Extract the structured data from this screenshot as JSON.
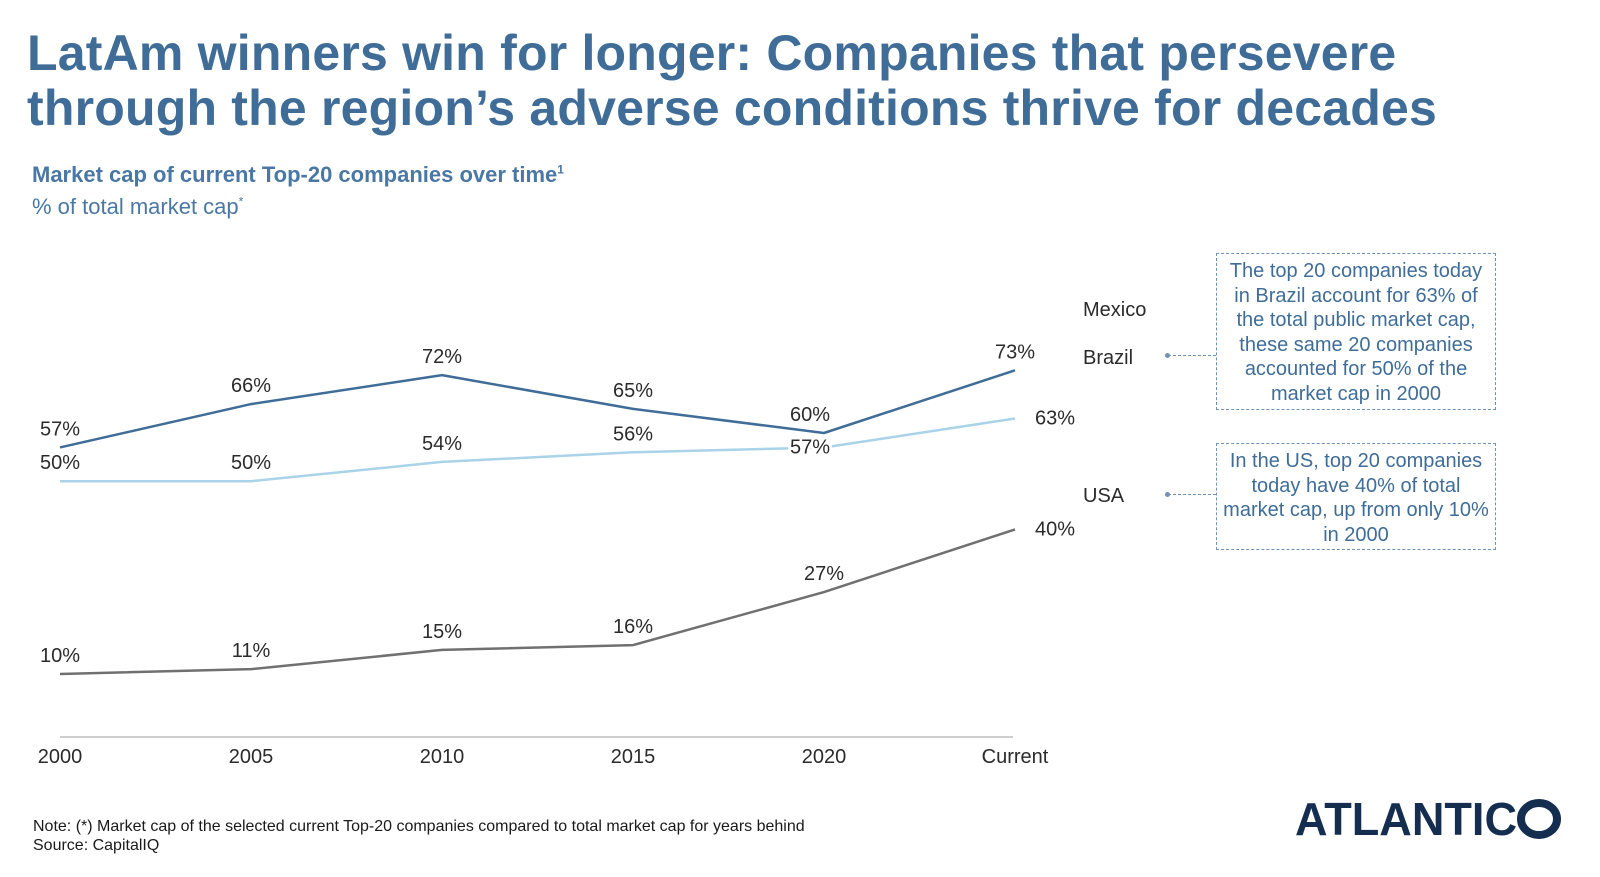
{
  "header": {
    "title": "LatAm winners win for longer: Companies that persevere through the region’s adverse conditions thrive for decades",
    "subtitle": "Market cap of current Top-20 companies over time",
    "subtitle_sup": "1",
    "unit": "% of total market cap",
    "unit_sup": "*"
  },
  "callouts": {
    "brazil": "The top 20 companies today in Brazil account for 63% of the total public market cap, these same 20 companies accounted for 50% of the market cap in 2000",
    "usa": "In the US, top 20 companies today have 40% of total market cap, up from only 10% in 2000"
  },
  "footer": {
    "note": "Note: (*) Market cap of the selected current Top-20 companies compared to total market cap for years behind",
    "source": "Source: CapitalIQ"
  },
  "logo": {
    "text": "ATLANTICO"
  },
  "chart_data": {
    "type": "line",
    "categories": [
      "2000",
      "2005",
      "2010",
      "2015",
      "2020",
      "Current"
    ],
    "series": [
      {
        "name": "Mexico",
        "values": [
          57,
          66,
          72,
          65,
          60,
          73
        ],
        "labels": [
          "57%",
          "66%",
          "72%",
          "65%",
          "60%",
          "73%"
        ],
        "color": "#3f6d98"
      },
      {
        "name": "Brazil",
        "values": [
          50,
          50,
          54,
          56,
          57,
          63
        ],
        "labels": [
          "50%",
          "50%",
          "54%",
          "56%",
          "57%",
          "63%"
        ],
        "color": "#a9d3e8"
      },
      {
        "name": "USA",
        "values": [
          10,
          11,
          15,
          16,
          27,
          40
        ],
        "labels": [
          "10%",
          "11%",
          "15%",
          "16%",
          "27%",
          "40%"
        ],
        "color": "#707070"
      }
    ],
    "xlabel": "",
    "ylabel": "",
    "axis_color": "#b0b0b0",
    "grid": false,
    "legend": "right (inline series labels)"
  }
}
